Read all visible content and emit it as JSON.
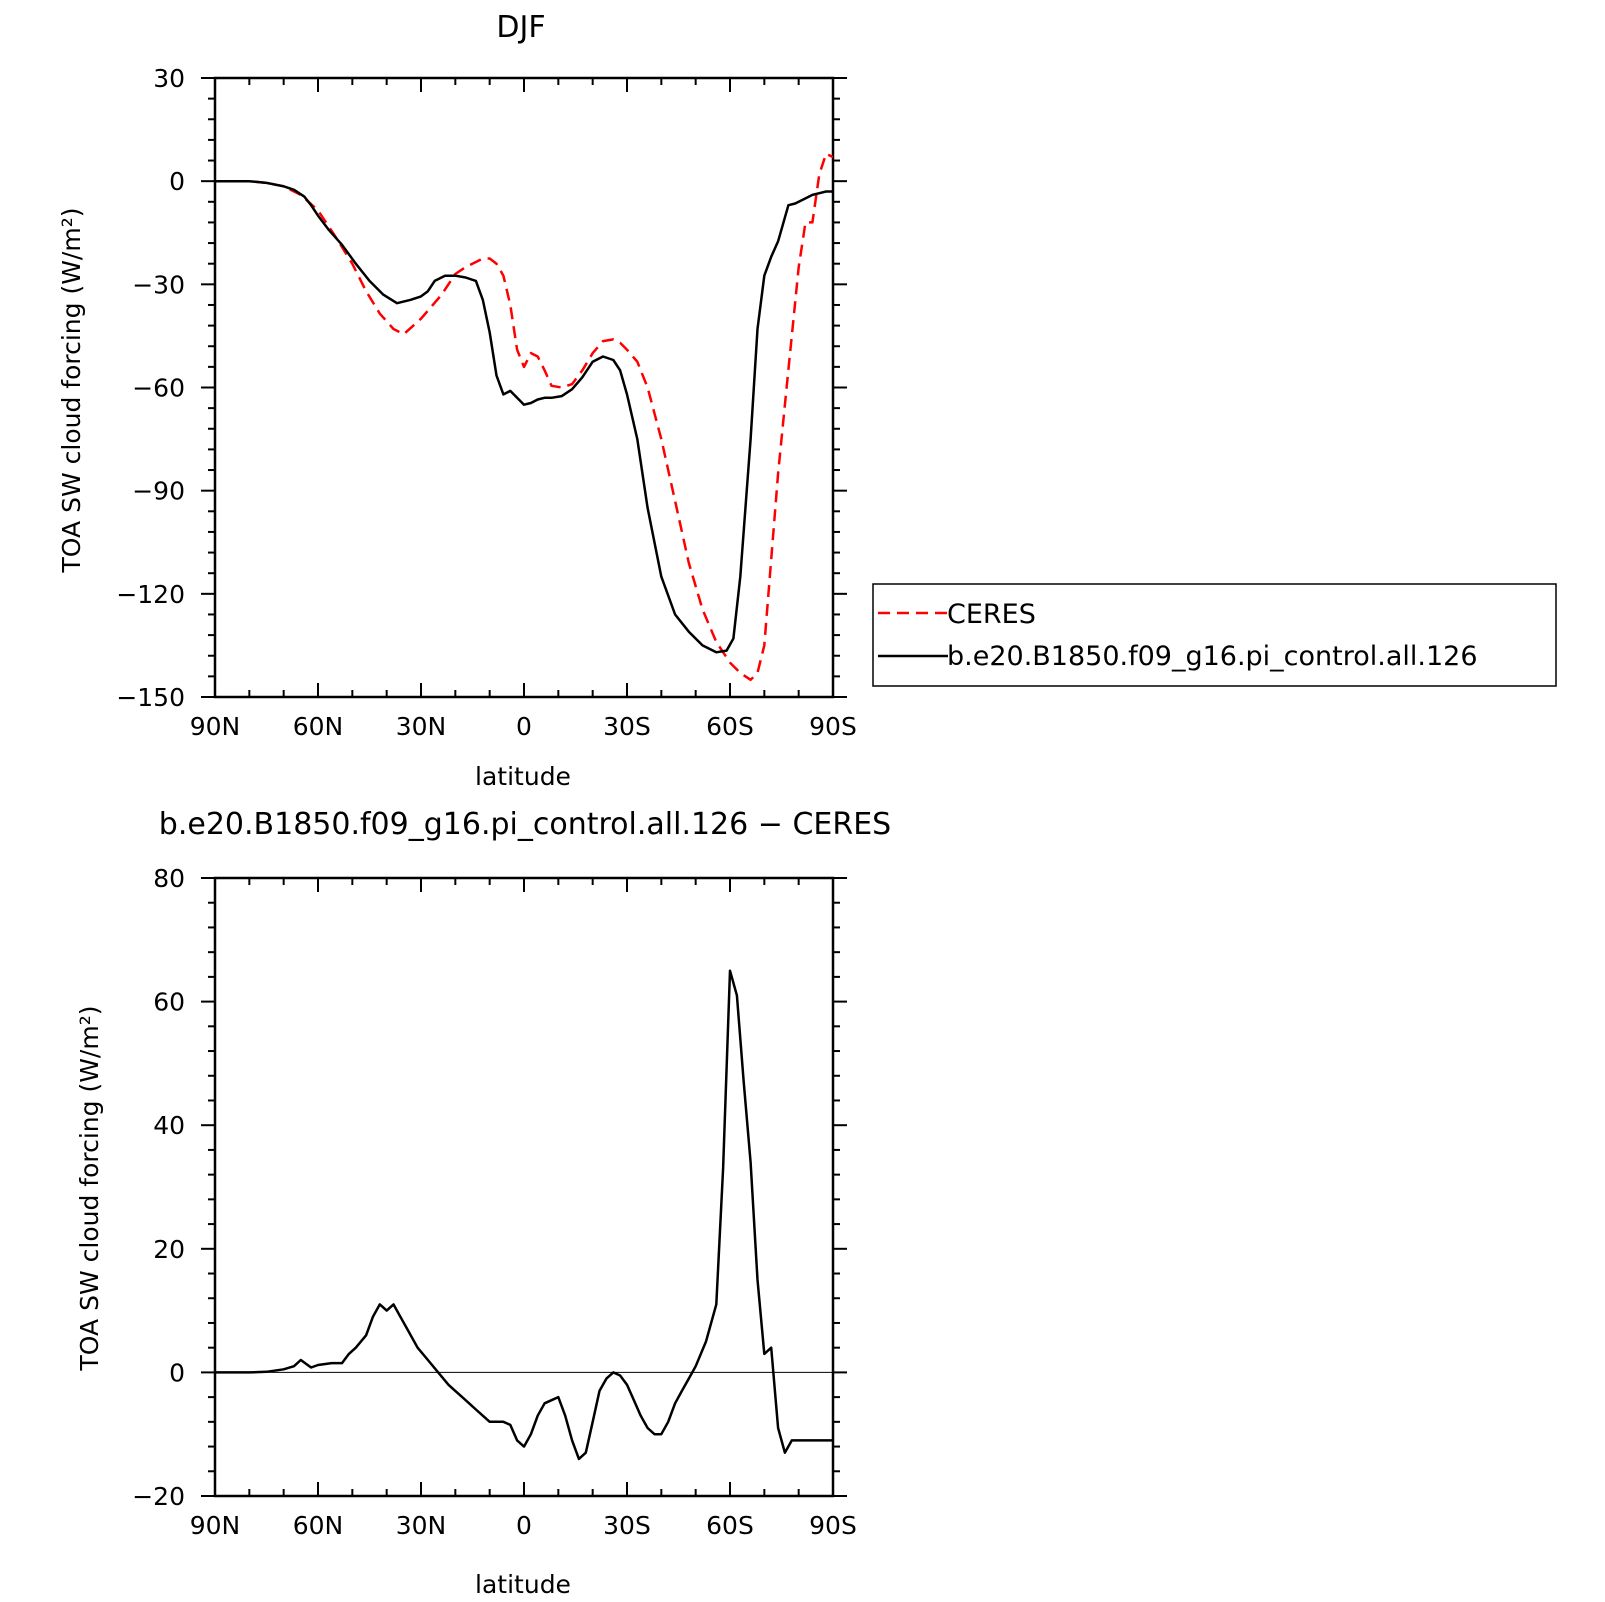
{
  "chart_data": [
    {
      "type": "line",
      "title": "DJF",
      "xlabel": "latitude",
      "ylabel": "TOA SW cloud forcing (W/m²)",
      "xlim": [
        90,
        -90
      ],
      "ylim": [
        -150,
        30
      ],
      "xticks": [
        90,
        60,
        30,
        0,
        -30,
        -60,
        -90
      ],
      "xtick_labels": [
        "90N",
        "60N",
        "30N",
        "0",
        "30S",
        "60S",
        "90S"
      ],
      "yticks": [
        30,
        0,
        -30,
        -60,
        -90,
        -120,
        -150
      ],
      "ytick_labels": [
        "30",
        "0",
        "−30",
        "−60",
        "−90",
        "−120",
        "−150"
      ],
      "legend": "right",
      "series": [
        {
          "name": "CERES",
          "color": "#ff0000",
          "style": "dashed",
          "x": [
            90,
            80,
            75,
            70,
            65,
            60,
            55,
            50,
            46,
            42,
            38,
            35,
            30,
            27,
            24,
            20,
            17,
            14,
            12,
            10,
            8,
            6,
            4,
            2,
            0,
            -2,
            -4,
            -6,
            -8,
            -11,
            -14,
            -17,
            -20,
            -23,
            -26,
            -28,
            -30,
            -33,
            -36,
            -40,
            -44,
            -48,
            -52,
            -56,
            -60,
            -63,
            -66,
            -68,
            -70,
            -72,
            -74,
            -76,
            -78,
            -80,
            -82,
            -84,
            -86,
            -88,
            -90
          ],
          "y": [
            0,
            0,
            -0.5,
            -1.5,
            -4,
            -8.5,
            -16,
            -24,
            -32,
            -38.5,
            -43,
            -44.5,
            -40,
            -36.5,
            -33,
            -27,
            -25,
            -23.5,
            -22.5,
            -22.5,
            -24,
            -27.5,
            -36,
            -49,
            -54,
            -50,
            -51,
            -55,
            -59.5,
            -60,
            -59,
            -55,
            -50,
            -46.5,
            -46,
            -47,
            -49,
            -52.5,
            -60,
            -75,
            -93,
            -111,
            -124.5,
            -134,
            -140,
            -143,
            -145,
            -143,
            -135,
            -110,
            -85,
            -65,
            -45,
            -25,
            -12,
            -12,
            2,
            8,
            7
          ]
        },
        {
          "name": "b.e20.B1850.f09_g16.pi_control.all.126",
          "color": "#000000",
          "style": "solid",
          "x": [
            90,
            80,
            75,
            70,
            67,
            64,
            62,
            60,
            57,
            53,
            49,
            45,
            41,
            37,
            33,
            30,
            28,
            26,
            23,
            20,
            17,
            14,
            12,
            10,
            8,
            6,
            4,
            2,
            0,
            -2,
            -4,
            -6,
            -8,
            -11,
            -14,
            -17,
            -20,
            -23,
            -26,
            -28,
            -30,
            -33,
            -36,
            -40,
            -44,
            -48,
            -52,
            -56,
            -59,
            -61,
            -63,
            -66,
            -68,
            -70,
            -72,
            -74,
            -77,
            -79,
            -82,
            -84,
            -86,
            -88,
            -90
          ],
          "y": [
            0,
            0,
            -0.5,
            -1.5,
            -2.5,
            -4.5,
            -7,
            -10,
            -14,
            -18.5,
            -24,
            -29,
            -33,
            -35.5,
            -34.5,
            -33.5,
            -32,
            -29,
            -27.5,
            -27.5,
            -28,
            -29,
            -34.5,
            -44,
            -56.5,
            -62,
            -61,
            -63,
            -65,
            -64.5,
            -63.5,
            -63,
            -63,
            -62.5,
            -60.5,
            -57,
            -52.5,
            -51,
            -52,
            -55,
            -62,
            -75,
            -95,
            -115,
            -126,
            -131,
            -135,
            -137,
            -136.5,
            -133,
            -115,
            -75,
            -43,
            -27.5,
            -22,
            -17.5,
            -7,
            -6.5,
            -5,
            -4,
            -3.5,
            -3,
            -3
          ]
        }
      ]
    },
    {
      "type": "line",
      "title": "b.e20.B1850.f09_g16.pi_control.all.126 − CERES",
      "xlabel": "latitude",
      "ylabel": "TOA SW cloud forcing (W/m²)",
      "xlim": [
        90,
        -90
      ],
      "ylim": [
        -20,
        80
      ],
      "xticks": [
        90,
        60,
        30,
        0,
        -30,
        -60,
        -90
      ],
      "xtick_labels": [
        "90N",
        "60N",
        "30N",
        "0",
        "30S",
        "60S",
        "90S"
      ],
      "yticks": [
        80,
        60,
        40,
        20,
        0,
        -20
      ],
      "ytick_labels": [
        "80",
        "60",
        "40",
        "20",
        "0",
        "−20"
      ],
      "series": [
        {
          "color": "#000000",
          "style": "solid",
          "x": [
            90,
            80,
            75,
            70,
            67,
            65,
            62,
            60,
            56,
            53,
            51,
            49,
            46,
            44,
            42,
            40,
            38,
            36,
            34,
            31,
            28,
            25,
            22,
            20,
            18,
            16,
            14,
            12,
            10,
            8,
            6,
            4,
            2,
            0,
            -2,
            -4,
            -6,
            -8,
            -10,
            -12,
            -14,
            -16,
            -18,
            -20,
            -22,
            -24,
            -26,
            -28,
            -30,
            -32,
            -34,
            -36,
            -38,
            -40,
            -42,
            -44,
            -46,
            -48,
            -50,
            -53,
            -56,
            -58,
            -60,
            -62,
            -64,
            -66,
            -68,
            -70,
            -72,
            -74,
            -76,
            -78,
            -80,
            -82,
            -84,
            -86,
            -88,
            -90
          ],
          "y": [
            0,
            0,
            0.1,
            0.5,
            1,
            2,
            0.8,
            1.2,
            1.5,
            1.5,
            3,
            4,
            6,
            9,
            11,
            10,
            11,
            9,
            7,
            4,
            2,
            0,
            -2,
            -3,
            -4,
            -5,
            -6,
            -7,
            -8,
            -8,
            -8,
            -8.5,
            -11,
            -12,
            -10,
            -7,
            -5,
            -4.5,
            -4,
            -7,
            -11,
            -14,
            -13,
            -8,
            -3,
            -1,
            0,
            -0.5,
            -2,
            -4.5,
            -7,
            -9,
            -10,
            -10,
            -8,
            -5,
            -3,
            -1,
            1,
            5,
            11,
            33,
            65,
            61,
            47,
            34,
            15,
            3,
            4,
            -9,
            -13,
            -11,
            -11,
            -11,
            -11,
            -11,
            -11,
            -11
          ]
        }
      ]
    }
  ]
}
